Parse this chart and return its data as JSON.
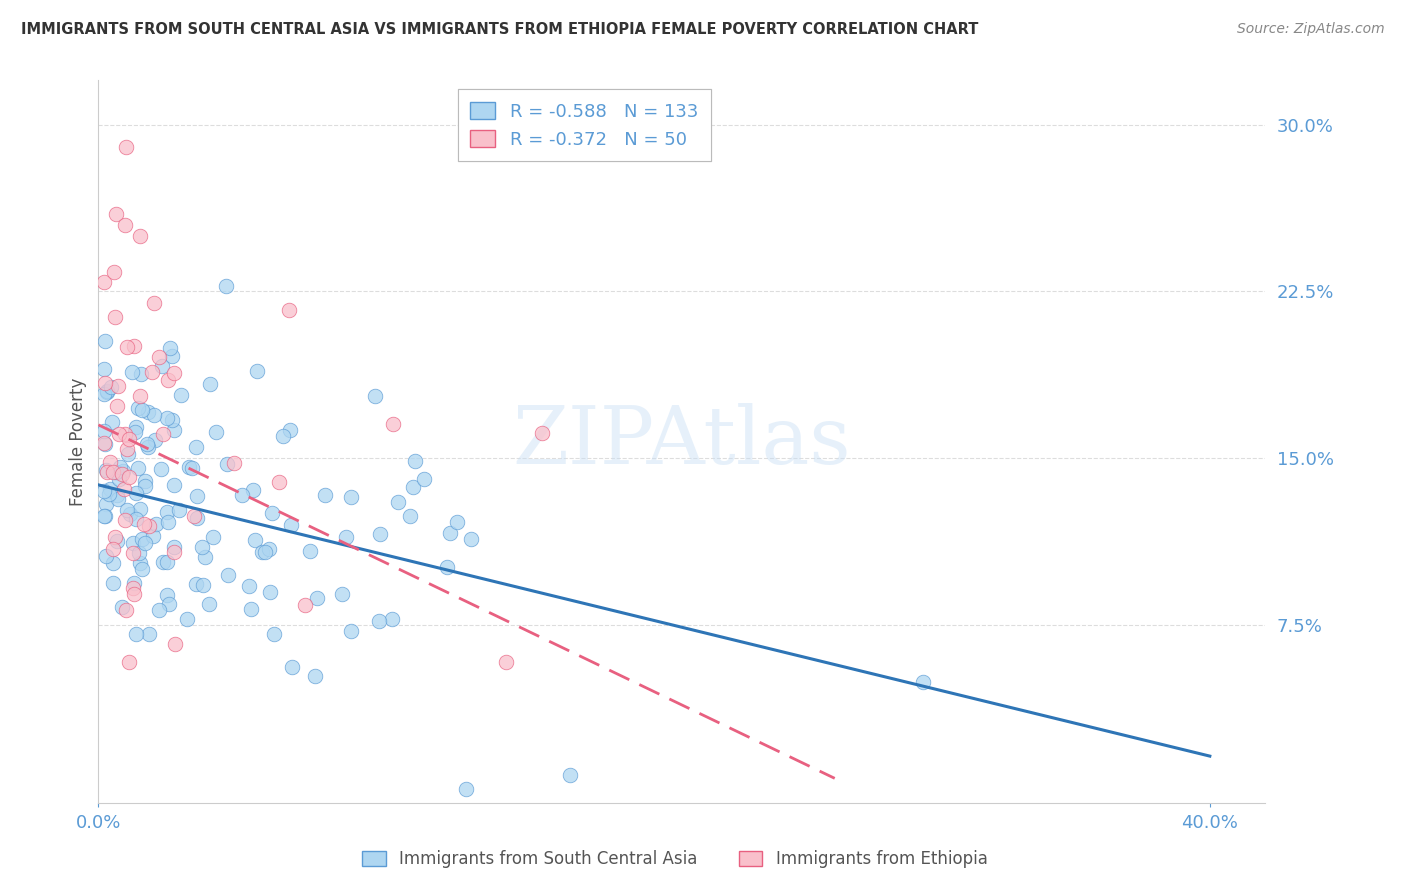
{
  "title": "IMMIGRANTS FROM SOUTH CENTRAL ASIA VS IMMIGRANTS FROM ETHIOPIA FEMALE POVERTY CORRELATION CHART",
  "source": "Source: ZipAtlas.com",
  "ylabel": "Female Poverty",
  "xlim": [
    0.0,
    0.42
  ],
  "ylim": [
    -0.005,
    0.32
  ],
  "watermark_text": "ZIPAtlas",
  "legend_line1": "R = -0.588   N = 133",
  "legend_line2": "R = -0.372   N = 50",
  "color_blue_fill": "#AED6F1",
  "color_blue_edge": "#5B9BD5",
  "color_blue_line": "#2E75B6",
  "color_pink_fill": "#F9C0CB",
  "color_pink_edge": "#E86080",
  "color_pink_line": "#E86080",
  "color_axis_text": "#5B9BD5",
  "color_grid": "#DDDDDD",
  "color_title": "#333333",
  "color_source": "#888888",
  "color_ylabel": "#555555",
  "ytick_vals": [
    0.075,
    0.15,
    0.225,
    0.3
  ],
  "ytick_labels": [
    "7.5%",
    "15.0%",
    "22.5%",
    "30.0%"
  ],
  "xtick_vals": [
    0.0,
    0.4
  ],
  "xtick_labels": [
    "0.0%",
    "40.0%"
  ],
  "blue_intercept": 0.138,
  "blue_slope": -0.305,
  "pink_intercept": 0.165,
  "pink_slope": -0.6,
  "pink_line_xmax": 0.265,
  "scatter_seed": 77,
  "n_blue": 133,
  "n_pink": 50
}
